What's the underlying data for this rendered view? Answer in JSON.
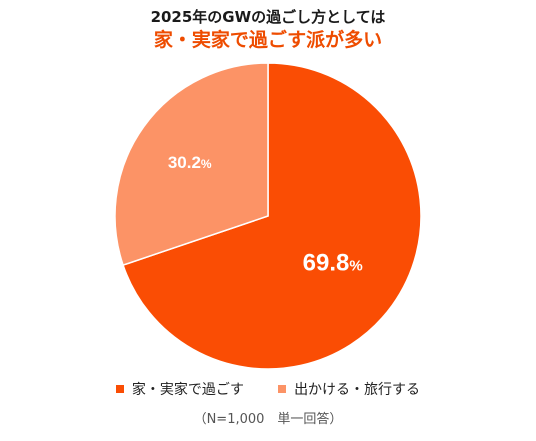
{
  "chart_data": {
    "type": "pie",
    "title": "2025年のGWの過ごし方としては",
    "subtitle": "家・実家で過ごす派が多い",
    "slices": [
      {
        "name": "家・実家で過ごす",
        "value": 69.8,
        "label": "69.8",
        "color": "#fa4d04"
      },
      {
        "name": "出かける・旅行する",
        "value": 30.2,
        "label": "30.2",
        "color": "#fc9366"
      }
    ],
    "unit": "%",
    "legend_position": "bottom",
    "note": "（N=1,000　単一回答）"
  }
}
